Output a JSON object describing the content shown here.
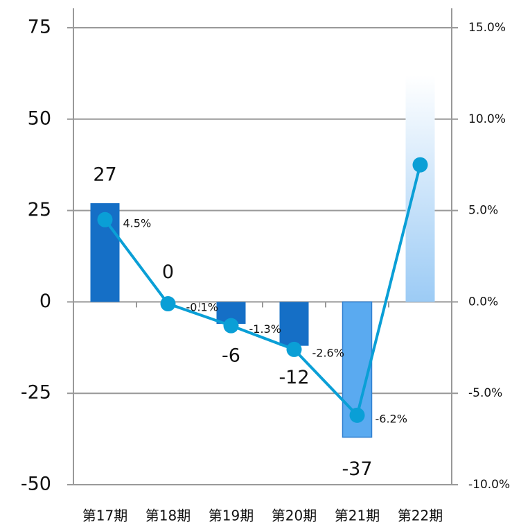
{
  "chart_data": {
    "type": "bar_line",
    "categories": [
      "第17期",
      "第18期",
      "第19期",
      "第20期",
      "第21期",
      "第22期"
    ],
    "series": [
      {
        "type": "bar",
        "values": [
          27,
          0,
          -6,
          -12,
          -37,
          62
        ],
        "value_labels": [
          "27",
          "0",
          "-6",
          "-12",
          "-37",
          null
        ],
        "colors": [
          "#156fc6",
          "#156fc6",
          "#156fc6",
          "#156fc6",
          "#5aaaf0",
          "#9ccbf5"
        ],
        "styles": [
          "solid",
          "solid",
          "solid",
          "solid",
          "outlined",
          "gradient"
        ]
      },
      {
        "type": "line",
        "axis": "y2",
        "color": "#0a9fd6",
        "values": [
          4.5,
          -0.1,
          -1.3,
          -2.6,
          -6.2,
          7.5
        ],
        "value_labels": [
          "4.5%",
          "-0.1%",
          "-1.3%",
          "-2.6%",
          "-6.2%",
          null
        ]
      }
    ],
    "ylim": [
      -50,
      75
    ],
    "yticks": [
      -50,
      -25,
      0,
      25,
      50,
      75
    ],
    "y2lim": [
      -10,
      15
    ],
    "y2ticks": [
      {
        "value": -10,
        "label": "-10.0%"
      },
      {
        "value": -5,
        "label": "-5.0%"
      },
      {
        "value": 0,
        "label": "0.0%"
      },
      {
        "value": 5,
        "label": "5.0%"
      },
      {
        "value": 10,
        "label": "10.0%"
      },
      {
        "value": 15,
        "label": "15.0%"
      }
    ],
    "grid": true
  }
}
